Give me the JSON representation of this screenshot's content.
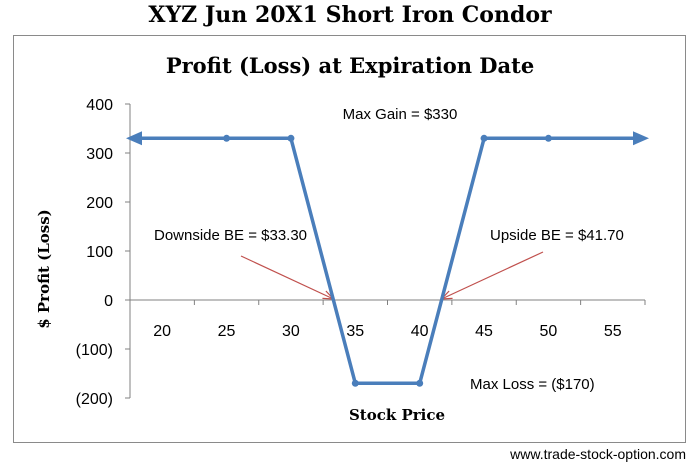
{
  "page": {
    "title": "XYZ Jun 20X1 Short Iron Condor",
    "source_url": "www.trade-stock-option.com"
  },
  "chart_data": {
    "type": "line",
    "title": "Profit (Loss) at Expiration Date",
    "xlabel": "Stock Price",
    "ylabel": "$ Profit (Loss)",
    "xlim": [
      17.5,
      57.5
    ],
    "ylim": [
      -200,
      400
    ],
    "x_ticks": [
      20,
      25,
      30,
      35,
      40,
      45,
      50,
      55
    ],
    "x_tick_labels": [
      "20",
      "25",
      "30",
      "35",
      "40",
      "45",
      "50",
      "55"
    ],
    "y_ticks": [
      400,
      300,
      200,
      100,
      0,
      -100,
      -200
    ],
    "y_tick_labels": [
      "400",
      "300",
      "200",
      "100",
      "0",
      "(100)",
      "(200)"
    ],
    "grid": false,
    "series_color": "#4a7ebb",
    "annotation_color": "#c0504d",
    "series": [
      {
        "x": [
          17.5,
          25,
          30,
          35,
          40,
          45,
          50,
          57.5
        ],
        "y": [
          330,
          330,
          330,
          -170,
          -170,
          330,
          330,
          330
        ],
        "markers_at": [
          25,
          30,
          35,
          40,
          45,
          50
        ],
        "arrows_at_ends": true
      }
    ],
    "annotations": [
      {
        "text": "Max Gain = $330"
      },
      {
        "text": "Downside BE = $33.30",
        "x": 33.3,
        "y": 0,
        "arrow": true
      },
      {
        "text": "Upside BE = $41.70",
        "x": 41.7,
        "y": 0,
        "arrow": true
      },
      {
        "text": "Max Loss = ($170)"
      }
    ]
  }
}
